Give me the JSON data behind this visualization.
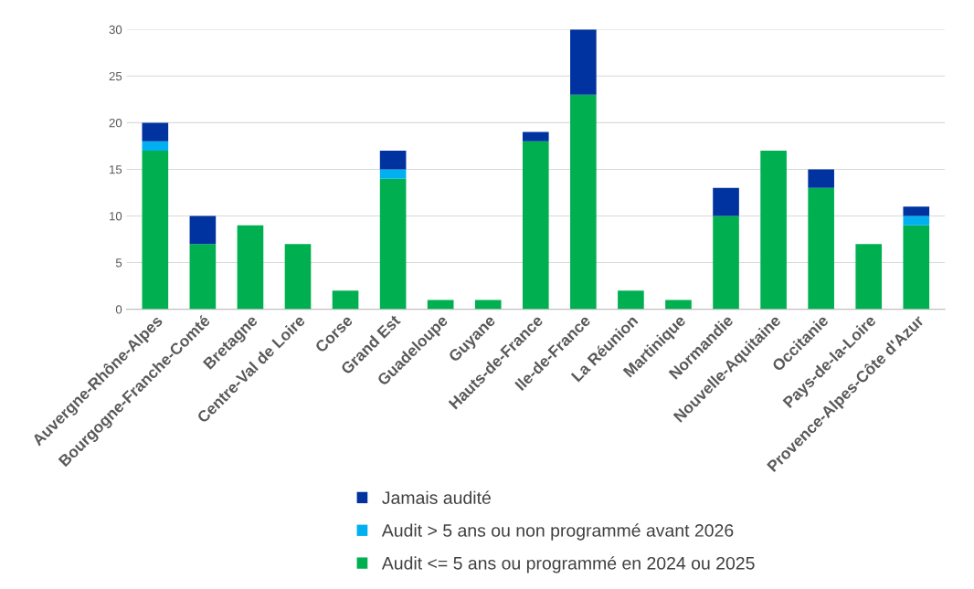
{
  "chart_data": {
    "type": "bar",
    "stacked": true,
    "categories": [
      "Auvergne-Rhône-Alpes",
      "Bourgogne-Franche-Comté",
      "Bretagne",
      "Centre-Val de Loire",
      "Corse",
      "Grand Est",
      "Guadeloupe",
      "Guyane",
      "Hauts-de-France",
      "Ile-de-France",
      "La Réunion",
      "Martinique",
      "Normandie",
      "Nouvelle-Aquitaine",
      "Occitanie",
      "Pays-de-la-Loire",
      "Provence-Alpes-Côte d'Azur"
    ],
    "series": [
      {
        "name": "Audit <= 5 ans ou programmé en 2024 ou 2025",
        "color": "#00b050",
        "values": [
          17,
          7,
          9,
          7,
          2,
          14,
          1,
          1,
          18,
          23,
          2,
          1,
          10,
          17,
          13,
          7,
          9
        ]
      },
      {
        "name": "Audit > 5 ans ou non programmé avant 2026",
        "color": "#00b0f0",
        "values": [
          1,
          0,
          0,
          0,
          0,
          1,
          0,
          0,
          0,
          0,
          0,
          0,
          0,
          0,
          0,
          0,
          1
        ]
      },
      {
        "name": "Jamais audité",
        "color": "#0033a0",
        "values": [
          2,
          3,
          0,
          0,
          0,
          2,
          0,
          0,
          1,
          7,
          0,
          0,
          3,
          0,
          2,
          0,
          1
        ]
      }
    ],
    "ylim": [
      0,
      30
    ],
    "yticks": [
      0,
      5,
      10,
      15,
      20,
      25,
      30
    ],
    "grid": "y",
    "legend": "bottom"
  }
}
